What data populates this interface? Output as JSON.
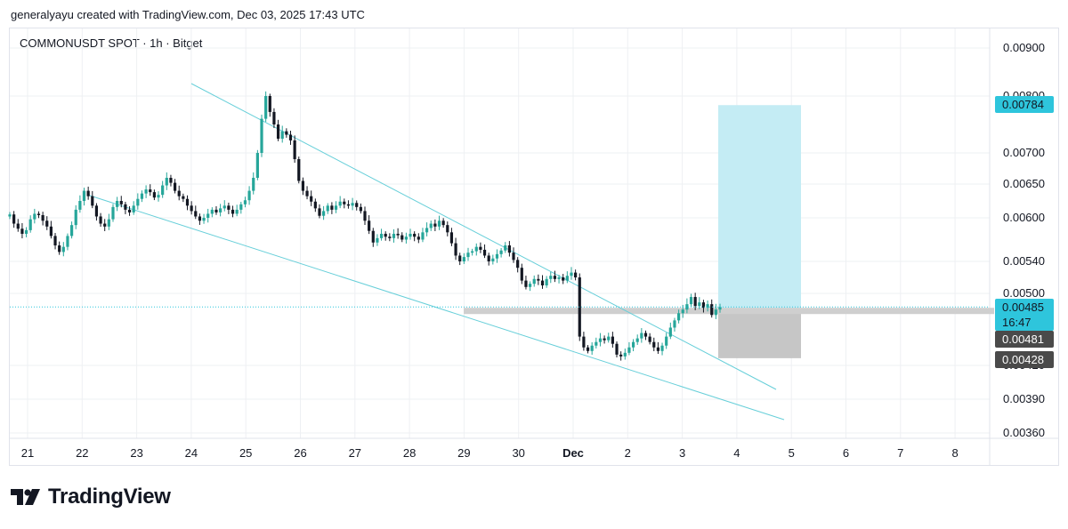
{
  "header": {
    "attribution": "generalyayu created with TradingView.com, Dec 03, 2025 17:43 UTC"
  },
  "symbol_line": "COMMONUSDT SPOT · 1h · Bitget",
  "brand": {
    "name": "TradingView"
  },
  "colors": {
    "up": "#26a69a",
    "down": "#131722",
    "trendline": "#67cfd9",
    "target_zone": "#c4ecf4",
    "stop_zone": "#c6c6c6",
    "grid": "#eef0f3",
    "last_price_badge": "#2ec5dc",
    "position_badge": "#4a4a4a"
  },
  "chart_data": {
    "type": "candlestick",
    "x_axis": {
      "ticks": [
        "21",
        "22",
        "23",
        "24",
        "25",
        "26",
        "27",
        "28",
        "29",
        "30",
        "Dec",
        "2",
        "3",
        "4",
        "5",
        "6",
        "7",
        "8"
      ],
      "bold_tick": "Dec"
    },
    "y_axis": {
      "ticks": [
        "0.00360",
        "0.00390",
        "0.00420",
        "0.00500",
        "0.00540",
        "0.00600",
        "0.00650",
        "0.00700",
        "0.00800",
        "0.00900"
      ],
      "range": [
        0.0034,
        0.0095
      ]
    },
    "price_labels": {
      "target": "0.00784",
      "last_price": "0.00485",
      "countdown": "16:47",
      "entry": "0.00481",
      "stop": "0.00428"
    },
    "trendlines": [
      {
        "from": [
          "Nov 23 12:00",
          0.0082
        ],
        "to": [
          "Dec 4 18:00",
          0.0041
        ]
      },
      {
        "from": [
          "Nov 22 6:00",
          0.00635
        ],
        "to": [
          "Dec 5 0:00",
          0.00375
        ]
      }
    ],
    "position": {
      "entry": 0.00481,
      "target": 0.00784,
      "stop": 0.00428,
      "start": "Dec 3 18:00",
      "end": "Dec 5 06:00"
    },
    "candles_close": [
      0.00605,
      0.00592,
      0.00585,
      0.00578,
      0.00583,
      0.00598,
      0.00606,
      0.00604,
      0.00596,
      0.00588,
      0.00575,
      0.00562,
      0.00553,
      0.0056,
      0.00575,
      0.0059,
      0.00612,
      0.00625,
      0.0064,
      0.00632,
      0.00618,
      0.00602,
      0.00592,
      0.00588,
      0.00598,
      0.00616,
      0.00625,
      0.0062,
      0.00612,
      0.00608,
      0.00618,
      0.00628,
      0.00636,
      0.00642,
      0.00638,
      0.0063,
      0.00634,
      0.00648,
      0.0066,
      0.00652,
      0.0064,
      0.00632,
      0.00628,
      0.00618,
      0.0061,
      0.00602,
      0.00596,
      0.006,
      0.00606,
      0.00612,
      0.00608,
      0.00614,
      0.00618,
      0.00612,
      0.00606,
      0.00612,
      0.0062,
      0.00626,
      0.0064,
      0.0066,
      0.007,
      0.0076,
      0.008,
      0.00772,
      0.0075,
      0.00725,
      0.00738,
      0.00732,
      0.00722,
      0.0069,
      0.00655,
      0.0064,
      0.00632,
      0.00624,
      0.00614,
      0.00603,
      0.0061,
      0.00618,
      0.00612,
      0.00618,
      0.00624,
      0.0062,
      0.00618,
      0.00622,
      0.00616,
      0.0061,
      0.00596,
      0.00582,
      0.00566,
      0.00572,
      0.00578,
      0.00574,
      0.00572,
      0.00578,
      0.00576,
      0.0057,
      0.00574,
      0.00578,
      0.00574,
      0.0057,
      0.0058,
      0.00586,
      0.00592,
      0.00588,
      0.00596,
      0.0059,
      0.0058,
      0.00565,
      0.00548,
      0.0054,
      0.00546,
      0.00552,
      0.00554,
      0.0056,
      0.00556,
      0.00548,
      0.0054,
      0.00544,
      0.0055,
      0.00555,
      0.00562,
      0.00552,
      0.00542,
      0.00532,
      0.00516,
      0.00508,
      0.00512,
      0.00518,
      0.00516,
      0.0051,
      0.00518,
      0.00522,
      0.00518,
      0.0052,
      0.00516,
      0.00522,
      0.00526,
      0.0052,
      0.00452,
      0.0044,
      0.00436,
      0.00442,
      0.00446,
      0.0045,
      0.00448,
      0.00452,
      0.00444,
      0.00432,
      0.0043,
      0.00434,
      0.0044,
      0.00446,
      0.0045,
      0.00456,
      0.00452,
      0.00446,
      0.0044,
      0.00436,
      0.00442,
      0.00452,
      0.00462,
      0.0047,
      0.00478,
      0.00482,
      0.00488,
      0.00496,
      0.00486,
      0.0049,
      0.00484,
      0.00488,
      0.00476,
      0.00482,
      0.00485
    ]
  }
}
